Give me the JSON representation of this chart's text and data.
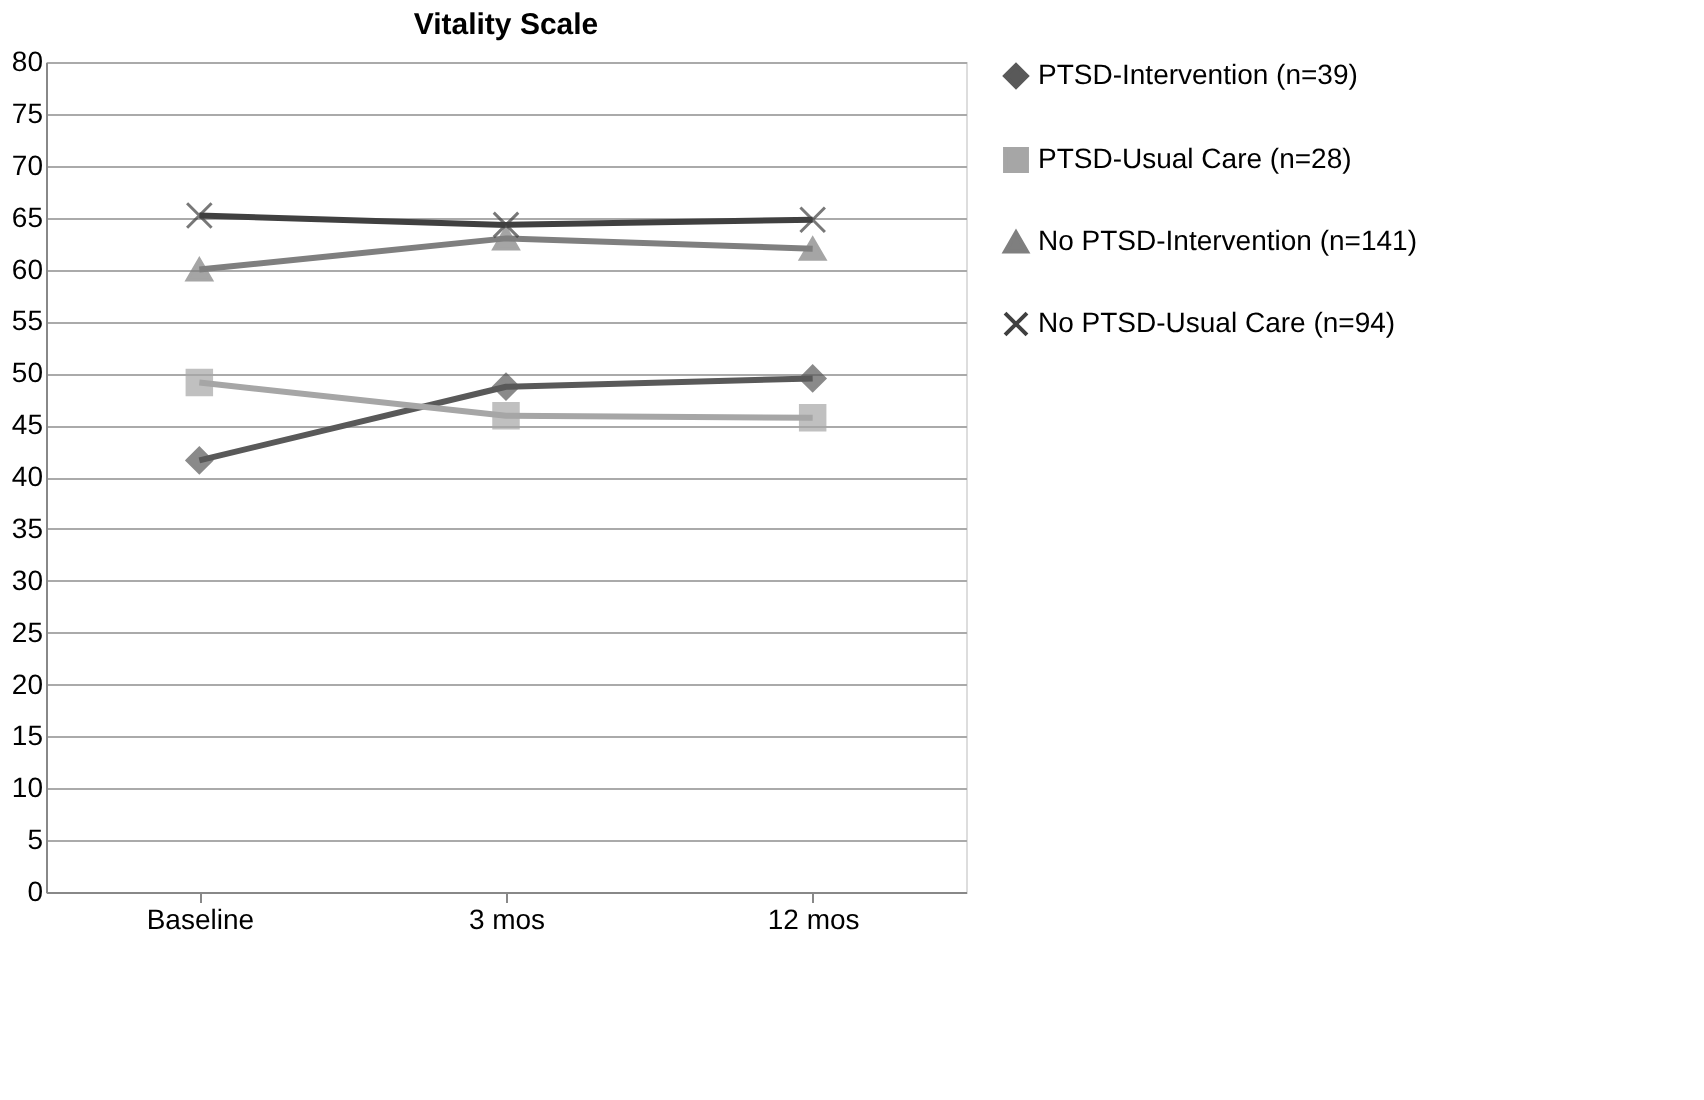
{
  "chart_data": {
    "type": "line",
    "title": "Vitality Scale",
    "categories": [
      "Baseline",
      "3 mos",
      "12 mos"
    ],
    "series": [
      {
        "name": "PTSD-Intervention (n=39)",
        "color": "#595959",
        "marker": "diamond",
        "values": [
          41.6,
          48.7,
          49.5
        ]
      },
      {
        "name": "PTSD-Usual Care (n=28)",
        "color": "#a6a6a6",
        "marker": "square",
        "values": [
          49.1,
          45.9,
          45.7
        ]
      },
      {
        "name": "No PTSD-Intervention (n=141)",
        "color": "#7f7f7f",
        "marker": "triangle",
        "values": [
          60,
          63,
          62
        ]
      },
      {
        "name": "No PTSD-Usual Care (n=94)",
        "color": "#404040",
        "marker": "cross",
        "values": [
          65.2,
          64.3,
          64.8
        ]
      }
    ],
    "ylim": [
      0,
      80
    ],
    "yticks": [
      0,
      5,
      10,
      15,
      20,
      25,
      30,
      35,
      40,
      45,
      50,
      55,
      60,
      65,
      70,
      75,
      80
    ],
    "grid": "y",
    "legend": "right",
    "line_style": "solid"
  }
}
